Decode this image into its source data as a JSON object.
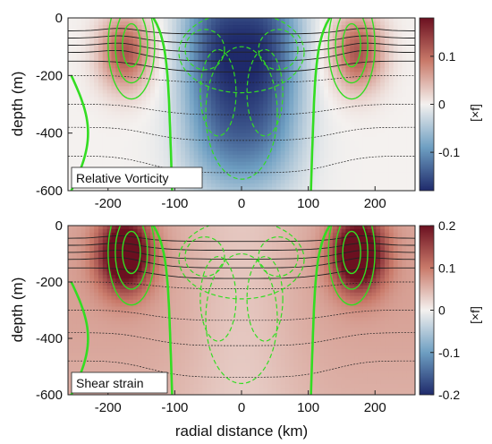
{
  "figure": {
    "xlabel": "radial distance (km)",
    "ylabel": "depth (m)",
    "colorbar_unit": "[×f]"
  },
  "colors": {
    "negative": "#1f2a6b",
    "neutral": "#f4f1ef",
    "positive": "#6b1020",
    "green_contour": "#33dd22",
    "isopycnal": "#222222"
  },
  "chart_data": [
    {
      "type": "heatmap",
      "title": "Relative Vorticity",
      "xlabel": "",
      "ylabel": "depth (m)",
      "xlim": [
        -260,
        260
      ],
      "ylim": [
        -600,
        0
      ],
      "x_ticks": [
        -200,
        -100,
        0,
        100,
        200
      ],
      "y_ticks": [
        0,
        -200,
        -400,
        -600
      ],
      "colorbar": {
        "range": [
          -0.18,
          0.18
        ],
        "ticks": [
          0.1,
          0,
          -0.1
        ],
        "tick_labels": [
          "0.1",
          "0",
          "-0.1"
        ],
        "label": "[×f]"
      },
      "features": {
        "core_value": -0.18,
        "core_halfwidth_km": 85,
        "core_depth_m": 190,
        "ring_value": 0.12,
        "ring_center_km": 175,
        "ring_halfwidth_km": 45,
        "ring_depth_m": 120,
        "deep_tail_value": -0.07,
        "deep_tail_halfwidth_km": 80
      },
      "isopycnal_depths_m": [
        45,
        70,
        95,
        120,
        150,
        200,
        300,
        380,
        480
      ]
    },
    {
      "type": "heatmap",
      "title": "Shear strain",
      "xlabel": "radial distance (km)",
      "ylabel": "depth (m)",
      "xlim": [
        -260,
        260
      ],
      "ylim": [
        -600,
        0
      ],
      "x_ticks": [
        -200,
        -100,
        0,
        100,
        200
      ],
      "y_ticks": [
        0,
        -200,
        -400,
        -600
      ],
      "colorbar": {
        "range": [
          -0.2,
          0.2
        ],
        "ticks": [
          0.2,
          0.1,
          0,
          -0.1,
          -0.2
        ],
        "tick_labels": [
          "0.2",
          "0.1",
          "0",
          "-0.1",
          "-0.2"
        ],
        "label": "[×f]"
      },
      "features": {
        "ring_value": 0.2,
        "ring_center_km": 175,
        "ring_halfwidth_km": 45,
        "ring_depth_m": 100,
        "background_value": 0.06,
        "center_value": 0.035
      },
      "isopycnal_depths_m": [
        45,
        70,
        95,
        120,
        150,
        200,
        300,
        380,
        480
      ]
    }
  ]
}
